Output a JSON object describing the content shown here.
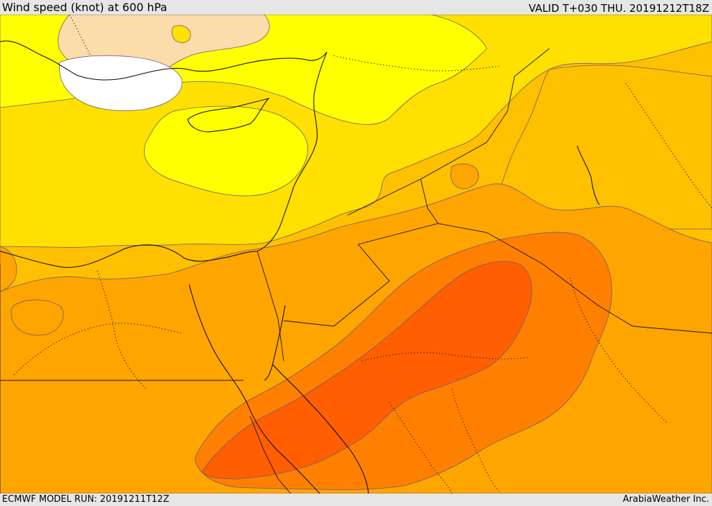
{
  "header": {
    "title": "Wind speed (knot) at 600 hPa",
    "valid": "VALID T+030 THU. 20191212T18Z"
  },
  "footer": {
    "model_run": "ECMWF MODEL RUN: 20191211T12Z",
    "credit": "ArabiaWeather Inc."
  },
  "map": {
    "variable": "wind speed",
    "level": "600 hPa",
    "palette": {
      "calm": "#ffffff",
      "very_low": "#fcdcaa",
      "low": "#ffff00",
      "low_mid": "#ffe000",
      "mid": "#ffc000",
      "mid_high": "#ffa500",
      "high": "#ff8000",
      "very_high": "#ff5f00"
    }
  }
}
